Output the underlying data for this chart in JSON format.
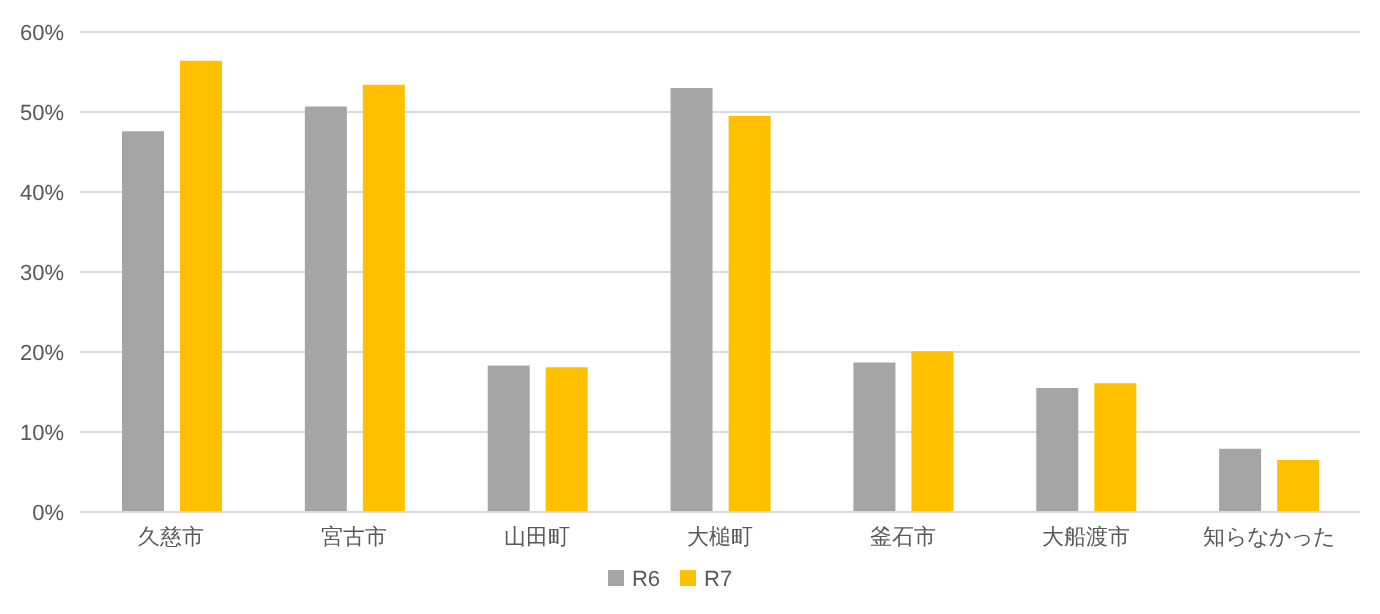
{
  "chart_data": {
    "type": "bar",
    "categories": [
      "久慈市",
      "宮古市",
      "山田町",
      "大槌町",
      "釜石市",
      "大船渡市",
      "知らなかった"
    ],
    "series": [
      {
        "name": "R6",
        "color": "#a5a5a5",
        "values": [
          47.6,
          50.7,
          18.3,
          53.0,
          18.7,
          15.5,
          7.9
        ]
      },
      {
        "name": "R7",
        "color": "#ffc000",
        "values": [
          56.4,
          53.4,
          18.1,
          49.5,
          20.1,
          16.1,
          6.5
        ]
      }
    ],
    "ylim": [
      0,
      60
    ],
    "yticks": [
      {
        "value": 0,
        "label": "0%"
      },
      {
        "value": 10,
        "label": "10%"
      },
      {
        "value": 20,
        "label": "20%"
      },
      {
        "value": 30,
        "label": "30%"
      },
      {
        "value": 40,
        "label": "40%"
      },
      {
        "value": 50,
        "label": "50%"
      },
      {
        "value": 60,
        "label": "60%"
      }
    ],
    "grid": "y",
    "legend": "bottom"
  }
}
